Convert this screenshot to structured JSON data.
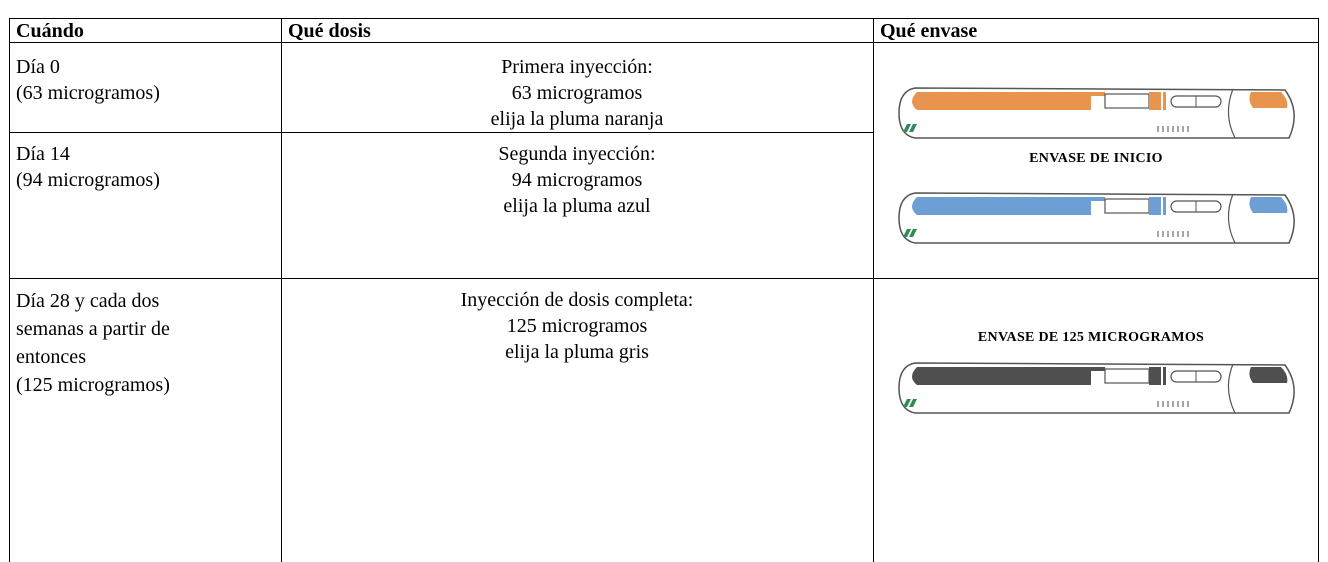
{
  "table": {
    "header": [
      "Cuándo",
      "Qué dosis",
      "Qué envase"
    ],
    "rows": [
      {
        "when": [
          "Día 0",
          "(63 microgramos)"
        ],
        "dose": [
          "Primera inyección:",
          "63 microgramos",
          "elija la pluma naranja"
        ]
      },
      {
        "when": [
          "Día 14",
          "(94 microgramos)"
        ],
        "dose": [
          "Segunda inyección:",
          "94 microgramos",
          "elija la pluma azul"
        ]
      },
      {
        "when": [
          "Día 28 y cada dos",
          "semanas a partir de",
          "entonces",
          "(125 microgramos)"
        ],
        "dose": [
          "Inyección de dosis completa:",
          "125 microgramos",
          "elija la pluma gris"
        ]
      }
    ],
    "packages": [
      {
        "label": "ENVASE DE INICIO"
      },
      {
        "label": "ENVASE DE 125 MICROGRAMOS"
      }
    ]
  }
}
